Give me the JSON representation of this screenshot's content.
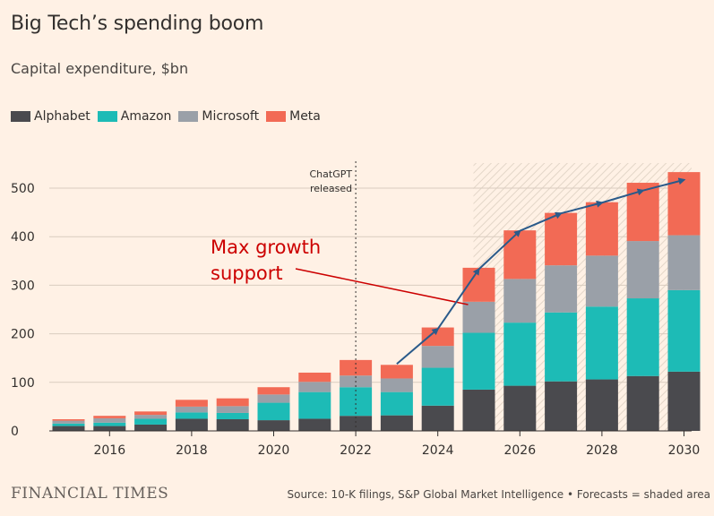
{
  "title": "Big Tech’s spending boom",
  "subtitle": "Capital expenditure, $bn",
  "footer": {
    "brand": "FINANCIAL TIMES",
    "source": "Source: 10-K filings, S&P Global Market Intelligence • Forecasts = shaded area"
  },
  "colors": {
    "background": "#fff1e5",
    "Alphabet": "#4a4a4e",
    "Amazon": "#1dbbb6",
    "Microsoft": "#9aa0a8",
    "Meta": "#f26a55",
    "arrow": "#2a5a8a",
    "annotation": "#cc0000"
  },
  "chart_data": {
    "type": "bar",
    "stacked": true,
    "categories": [
      2015,
      2016,
      2017,
      2018,
      2019,
      2020,
      2021,
      2022,
      2023,
      2024,
      2025,
      2026,
      2027,
      2028,
      2029,
      2030
    ],
    "x_tick_labels": [
      "2016",
      "2018",
      "2020",
      "2022",
      "2024",
      "2026",
      "2028",
      "2030"
    ],
    "series": [
      {
        "name": "Alphabet",
        "values": [
          10,
          10,
          13,
          25,
          24,
          22,
          25,
          31,
          32,
          52,
          85,
          93,
          102,
          106,
          113,
          122
        ]
      },
      {
        "name": "Amazon",
        "values": [
          5,
          7,
          12,
          13,
          13,
          36,
          55,
          59,
          48,
          78,
          117,
          130,
          142,
          150,
          160,
          168
        ]
      },
      {
        "name": "Microsoft",
        "values": [
          6,
          9,
          8,
          12,
          14,
          17,
          21,
          24,
          28,
          45,
          64,
          90,
          97,
          105,
          118,
          113
        ]
      },
      {
        "name": "Meta",
        "values": [
          3,
          5,
          7,
          14,
          16,
          15,
          19,
          32,
          28,
          38,
          70,
          100,
          108,
          110,
          120,
          130
        ]
      }
    ],
    "ylim": [
      0,
      540
    ],
    "y_ticks": [
      0,
      100,
      200,
      300,
      400,
      500
    ],
    "forecast_shaded_from": 2025,
    "annotations": {
      "vertical_line": {
        "x": 2022,
        "label_line1": "ChatGPT",
        "label_line2": "released"
      },
      "callout": {
        "line1": "Max growth",
        "line2": "support",
        "points_to": 2025
      },
      "trend_arrow_points": [
        {
          "x": 2023,
          "y": 138
        },
        {
          "x": 2024,
          "y": 210
        },
        {
          "x": 2025,
          "y": 333
        },
        {
          "x": 2026,
          "y": 412
        },
        {
          "x": 2027,
          "y": 448
        },
        {
          "x": 2028,
          "y": 470
        },
        {
          "x": 2029,
          "y": 495
        },
        {
          "x": 2030,
          "y": 517
        }
      ]
    }
  }
}
